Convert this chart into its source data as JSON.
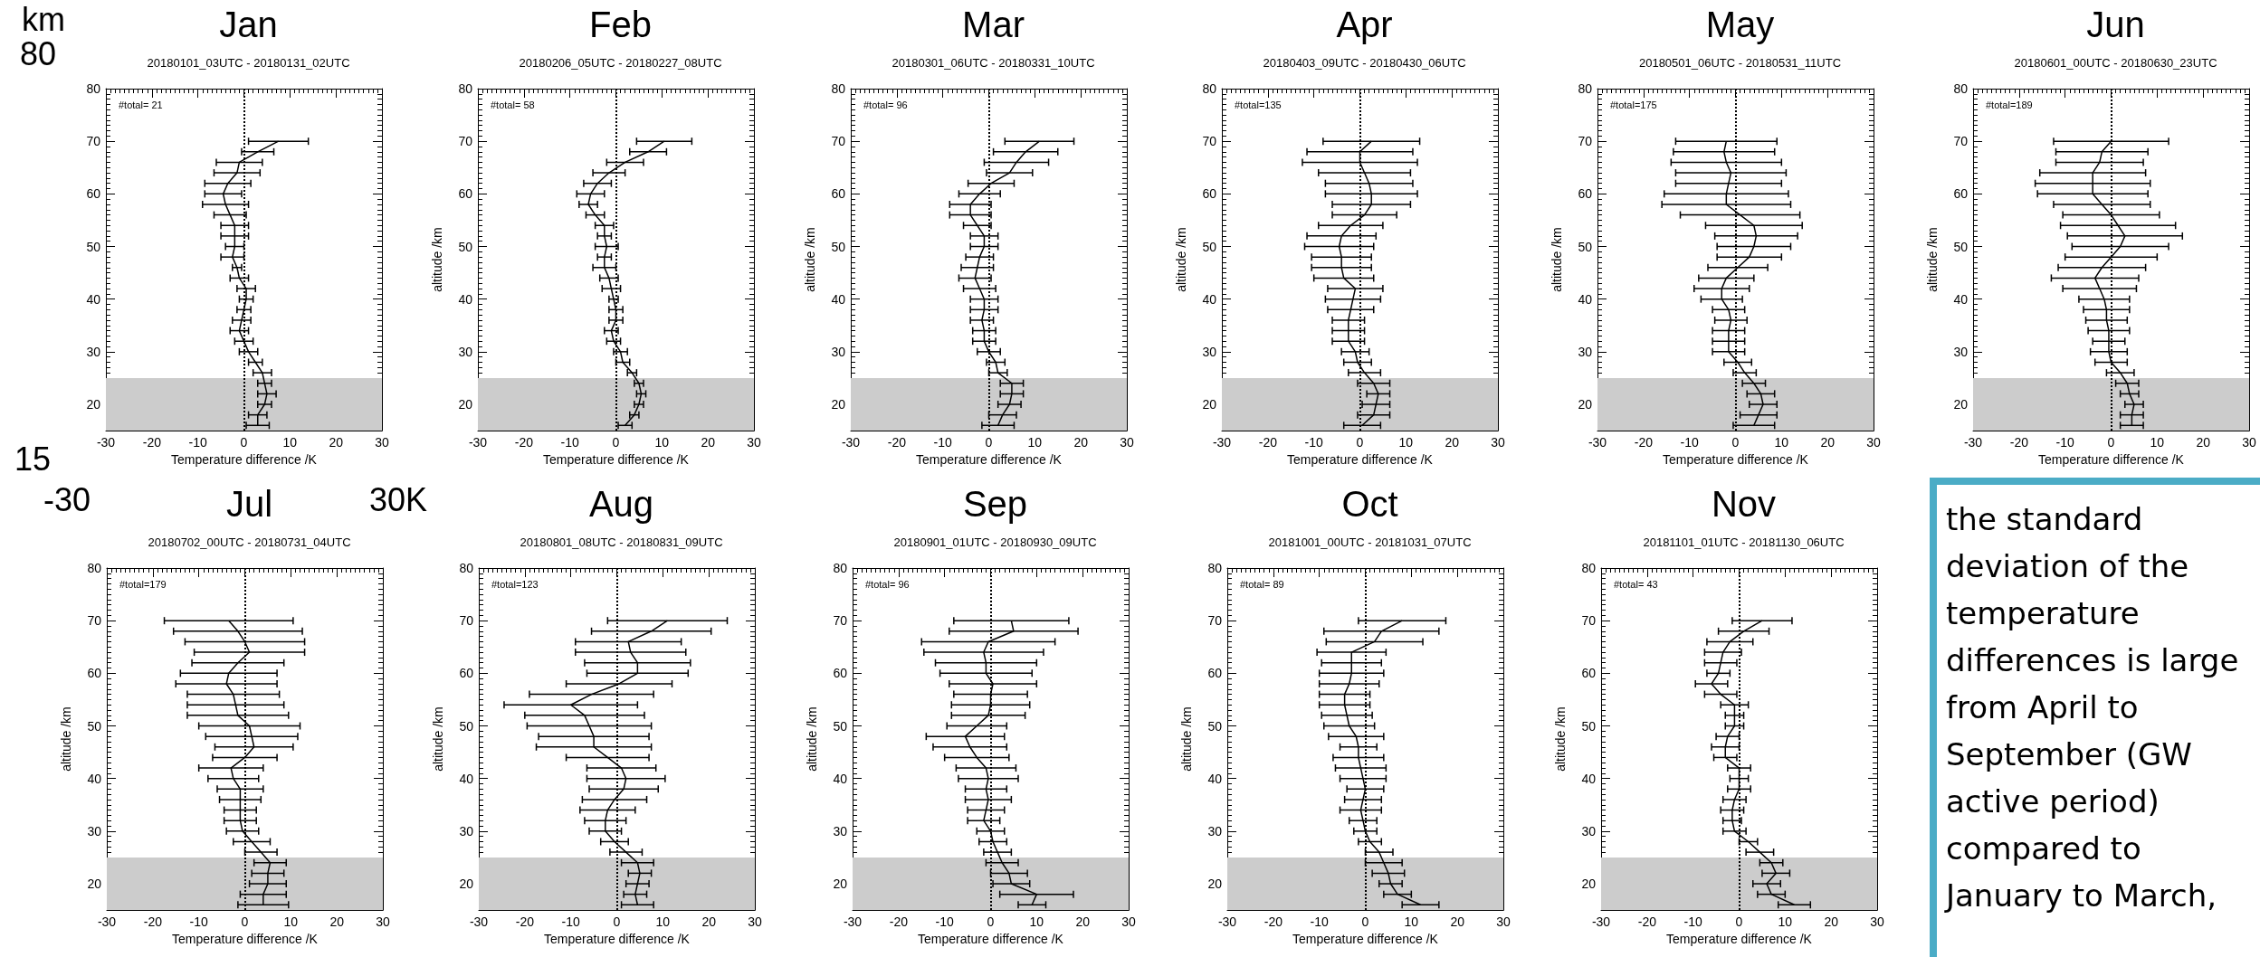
{
  "chart_data": [
    {
      "type": "line",
      "title": "Jan",
      "subtitle": "20180101_03UTC - 20180131_02UTC",
      "xlabel": "Temperature difference /K",
      "annotations": [
        "#total= 21"
      ],
      "xlim": [
        -30,
        30
      ],
      "xticks": [
        -30,
        -20,
        -10,
        0,
        10,
        20,
        30
      ],
      "ylim": [
        15,
        80
      ],
      "yticks": [
        20,
        30,
        40,
        50,
        60,
        70,
        80
      ],
      "bands": [
        {
          "axis": "y",
          "from": 15,
          "to": 25,
          "color": "#cccccc"
        }
      ],
      "ref_lines": [
        {
          "axis": "x",
          "value": 0,
          "line_style": "dotted"
        }
      ],
      "marker": "none",
      "line_style": "solid",
      "series": [
        {
          "color": "#000000",
          "values": [
            16,
            18,
            20,
            22,
            24,
            26,
            28,
            30,
            32,
            34,
            36,
            38,
            40,
            42,
            44,
            46,
            48,
            50,
            52,
            54,
            56,
            58,
            60,
            62,
            64,
            66,
            68,
            70
          ],
          "x": [
            3,
            3,
            4.5,
            5,
            4.5,
            4,
            2.5,
            1,
            0,
            -1,
            -0.5,
            0,
            0.5,
            0.5,
            -1,
            -1.5,
            -2.5,
            -2,
            -2,
            -2,
            -3,
            -4,
            -4.5,
            -3.5,
            -1.5,
            -1,
            3,
            7.5
          ],
          "xerrors": [
            2.5,
            2,
            1.5,
            2,
            1.5,
            2,
            1.5,
            2,
            2,
            2,
            2,
            1.5,
            1.5,
            2,
            2,
            1,
            2.5,
            2,
            3,
            3,
            3.5,
            5,
            4,
            5,
            5,
            5,
            3.5,
            6.5
          ]
        }
      ]
    },
    {
      "type": "line",
      "title": "Feb",
      "subtitle": "20180206_05UTC - 20180227_08UTC",
      "xlabel": "Temperature difference /K",
      "ylabel": "altitude /km",
      "annotations": [
        "#total= 58"
      ],
      "xlim": [
        -30,
        30
      ],
      "xticks": [
        -30,
        -20,
        -10,
        0,
        10,
        20,
        30
      ],
      "ylim": [
        15,
        80
      ],
      "yticks": [
        20,
        30,
        40,
        50,
        60,
        70,
        80
      ],
      "bands": [
        {
          "axis": "y",
          "from": 15,
          "to": 25,
          "color": "#cccccc"
        }
      ],
      "ref_lines": [
        {
          "axis": "x",
          "value": 0,
          "line_style": "dotted"
        }
      ],
      "marker": "none",
      "line_style": "solid",
      "series": [
        {
          "color": "#000000",
          "values": [
            16,
            18,
            20,
            22,
            24,
            26,
            28,
            30,
            32,
            34,
            36,
            38,
            40,
            42,
            44,
            46,
            48,
            50,
            52,
            54,
            56,
            58,
            60,
            62,
            64,
            66,
            68,
            70
          ],
          "x": [
            2,
            4,
            5,
            5.5,
            5,
            3.5,
            1.5,
            1,
            -0.5,
            -1,
            0,
            0,
            -0.5,
            -1,
            -1.5,
            -2.5,
            -2.5,
            -2,
            -2.5,
            -2.5,
            -4.5,
            -6,
            -5.5,
            -4,
            -1.5,
            2,
            7,
            10.5
          ],
          "xerrors": [
            1.5,
            1,
            1,
            1,
            1,
            1,
            1.5,
            1.5,
            1.5,
            1.5,
            1.5,
            1.5,
            1,
            2,
            2,
            2.5,
            1.5,
            2.5,
            1.5,
            2,
            2,
            2,
            3,
            3,
            3.5,
            4,
            4,
            6
          ]
        }
      ]
    },
    {
      "type": "line",
      "title": "Mar",
      "subtitle": "20180301_06UTC - 20180331_10UTC",
      "xlabel": "Temperature difference /K",
      "ylabel": "altitude /km",
      "annotations": [
        "#total= 96"
      ],
      "xlim": [
        -30,
        30
      ],
      "xticks": [
        -30,
        -20,
        -10,
        0,
        10,
        20,
        30
      ],
      "ylim": [
        15,
        80
      ],
      "yticks": [
        20,
        30,
        40,
        50,
        60,
        70,
        80
      ],
      "bands": [
        {
          "axis": "y",
          "from": 15,
          "to": 25,
          "color": "#cccccc"
        }
      ],
      "ref_lines": [
        {
          "axis": "x",
          "value": 0,
          "line_style": "dotted"
        }
      ],
      "marker": "none",
      "line_style": "solid",
      "series": [
        {
          "color": "#000000",
          "values": [
            16,
            18,
            20,
            22,
            24,
            26,
            28,
            30,
            32,
            34,
            36,
            38,
            40,
            42,
            44,
            46,
            48,
            50,
            52,
            54,
            56,
            58,
            60,
            62,
            64,
            66,
            68,
            70
          ],
          "x": [
            2,
            3,
            4.5,
            5,
            5,
            2,
            1.5,
            0,
            -1,
            -1,
            -1.5,
            -1,
            -1,
            -2,
            -3,
            -2.5,
            -2,
            -1,
            -1,
            -2.5,
            -4,
            -4,
            -2,
            0.5,
            4.5,
            6,
            8,
            11
          ],
          "xerrors": [
            3.5,
            3,
            2.5,
            2.5,
            2.5,
            2,
            2,
            2.5,
            2.5,
            2.5,
            2.5,
            3,
            3,
            3.5,
            3.5,
            3.5,
            3,
            3,
            3,
            3,
            4.5,
            4.5,
            4.5,
            5,
            5,
            7,
            7,
            7.5
          ]
        }
      ]
    },
    {
      "type": "line",
      "title": "Apr",
      "subtitle": "20180403_09UTC - 20180430_06UTC",
      "xlabel": "Temperature difference /K",
      "ylabel": "altitude /km",
      "annotations": [
        "#total=135"
      ],
      "xlim": [
        -30,
        30
      ],
      "xticks": [
        -30,
        -20,
        -10,
        0,
        10,
        20,
        30
      ],
      "ylim": [
        15,
        80
      ],
      "yticks": [
        20,
        30,
        40,
        50,
        60,
        70,
        80
      ],
      "bands": [
        {
          "axis": "y",
          "from": 15,
          "to": 25,
          "color": "#cccccc"
        }
      ],
      "ref_lines": [
        {
          "axis": "x",
          "value": 0,
          "line_style": "dotted"
        }
      ],
      "marker": "none",
      "line_style": "solid",
      "series": [
        {
          "color": "#000000",
          "values": [
            16,
            18,
            20,
            22,
            24,
            26,
            28,
            30,
            32,
            34,
            36,
            38,
            40,
            42,
            44,
            46,
            48,
            50,
            52,
            54,
            56,
            58,
            60,
            62,
            64,
            66,
            68,
            70
          ],
          "x": [
            0.5,
            3,
            3.5,
            4,
            3,
            1,
            -0.5,
            -1,
            -2.5,
            -2.5,
            -2.5,
            -2,
            -1.5,
            -1,
            -3.5,
            -4,
            -4,
            -4.5,
            -4,
            -2,
            1,
            2.5,
            2.5,
            2,
            1,
            0,
            0,
            2.5
          ],
          "xerrors": [
            4,
            3.5,
            3,
            2.5,
            3.5,
            3.5,
            3,
            3,
            3.5,
            3.5,
            3.5,
            5,
            6,
            6,
            6.5,
            6.5,
            6.5,
            7.5,
            7.5,
            7,
            7,
            8.5,
            10,
            9.5,
            10,
            12.5,
            11.5,
            10.5
          ]
        }
      ]
    },
    {
      "type": "line",
      "title": "May",
      "subtitle": "20180501_06UTC - 20180531_11UTC",
      "xlabel": "Temperature difference /K",
      "ylabel": "altitude /km",
      "annotations": [
        "#total=175"
      ],
      "xlim": [
        -30,
        30
      ],
      "xticks": [
        -30,
        -20,
        -10,
        0,
        10,
        20,
        30
      ],
      "ylim": [
        15,
        80
      ],
      "yticks": [
        20,
        30,
        40,
        50,
        60,
        70,
        80
      ],
      "bands": [
        {
          "axis": "y",
          "from": 15,
          "to": 25,
          "color": "#cccccc"
        }
      ],
      "ref_lines": [
        {
          "axis": "x",
          "value": 0,
          "line_style": "dotted"
        }
      ],
      "marker": "none",
      "line_style": "solid",
      "series": [
        {
          "color": "#000000",
          "values": [
            16,
            18,
            20,
            22,
            24,
            26,
            28,
            30,
            32,
            34,
            36,
            38,
            40,
            42,
            44,
            46,
            48,
            50,
            52,
            54,
            56,
            58,
            60,
            62,
            64,
            66,
            68,
            70
          ],
          "x": [
            4,
            5,
            6,
            5.5,
            4,
            2,
            0.5,
            -1.5,
            -1.5,
            -1.5,
            -1,
            -1.5,
            -3,
            -3,
            -2,
            0.5,
            3,
            4,
            4.5,
            4,
            1,
            -2,
            -2,
            -1.5,
            -1,
            -2,
            -2.5,
            -2
          ],
          "xerrors": [
            4.5,
            4,
            3,
            3,
            2.5,
            2.5,
            3,
            3.5,
            3.5,
            3.5,
            3.5,
            3.5,
            4.5,
            6,
            6,
            6.5,
            7,
            8,
            9,
            10.5,
            13,
            14,
            13.5,
            11.5,
            12,
            12,
            11,
            11
          ]
        }
      ]
    },
    {
      "type": "line",
      "title": "Jun",
      "subtitle": "20180601_00UTC - 20180630_23UTC",
      "xlabel": "Temperature difference /K",
      "ylabel": "altitude /km",
      "annotations": [
        "#total=189"
      ],
      "xlim": [
        -30,
        30
      ],
      "xticks": [
        -30,
        -20,
        -10,
        0,
        10,
        20,
        30
      ],
      "ylim": [
        15,
        80
      ],
      "yticks": [
        20,
        30,
        40,
        50,
        60,
        70,
        80
      ],
      "bands": [
        {
          "axis": "y",
          "from": 15,
          "to": 25,
          "color": "#cccccc"
        }
      ],
      "ref_lines": [
        {
          "axis": "x",
          "value": 0,
          "line_style": "dotted"
        }
      ],
      "marker": "none",
      "line_style": "solid",
      "series": [
        {
          "color": "#000000",
          "values": [
            16,
            18,
            20,
            22,
            24,
            26,
            28,
            30,
            32,
            34,
            36,
            38,
            40,
            42,
            44,
            46,
            48,
            50,
            52,
            54,
            56,
            58,
            60,
            62,
            64,
            66,
            68,
            70
          ],
          "x": [
            4.5,
            4.5,
            5,
            4,
            3.5,
            2,
            0,
            -0.5,
            -0.5,
            -0.5,
            -1,
            -1,
            -1.5,
            -2.5,
            -3.5,
            -2,
            0,
            2,
            3,
            1.5,
            0,
            -2,
            -4,
            -4,
            -4,
            -2.5,
            -2,
            0
          ],
          "xerrors": [
            2.5,
            2.5,
            2,
            2,
            2.5,
            3,
            3.5,
            4,
            3.5,
            4.5,
            4.5,
            5,
            5.5,
            8,
            9.5,
            9.5,
            10,
            10.5,
            12.5,
            12.5,
            10.5,
            10.5,
            12,
            12.5,
            11.5,
            9.5,
            10,
            12.5
          ]
        }
      ]
    },
    {
      "type": "line",
      "title": "Jul",
      "subtitle": "20180702_00UTC - 20180731_04UTC",
      "xlabel": "Temperature difference /K",
      "ylabel": "altitude /km",
      "annotations": [
        "#total=179"
      ],
      "xlim": [
        -30,
        30
      ],
      "xticks": [
        -30,
        -20,
        -10,
        0,
        10,
        20,
        30
      ],
      "ylim": [
        15,
        80
      ],
      "yticks": [
        20,
        30,
        40,
        50,
        60,
        70,
        80
      ],
      "bands": [
        {
          "axis": "y",
          "from": 15,
          "to": 25,
          "color": "#cccccc"
        }
      ],
      "ref_lines": [
        {
          "axis": "x",
          "value": 0,
          "line_style": "dotted"
        }
      ],
      "marker": "none",
      "line_style": "solid",
      "series": [
        {
          "color": "#000000",
          "values": [
            16,
            18,
            20,
            22,
            24,
            26,
            28,
            30,
            32,
            34,
            36,
            38,
            40,
            42,
            44,
            46,
            48,
            50,
            52,
            54,
            56,
            58,
            60,
            62,
            64,
            66,
            68,
            70
          ],
          "x": [
            4,
            4,
            5,
            5,
            5.5,
            3.5,
            1.5,
            -0.5,
            -1,
            -1,
            -1,
            -1,
            -2.5,
            -3,
            0,
            2,
            1.5,
            1,
            -1.5,
            -2,
            -2.5,
            -4,
            -3.5,
            -1.5,
            1,
            0,
            -1.5,
            -3.5
          ],
          "xerrors": [
            5.5,
            5,
            4,
            3.5,
            3.5,
            3.5,
            4,
            3.5,
            3.5,
            3.5,
            4.5,
            5,
            5.5,
            7,
            7,
            8.5,
            10,
            11,
            11,
            10.5,
            10,
            11,
            10.5,
            10,
            12,
            13,
            14,
            14
          ]
        }
      ]
    },
    {
      "type": "line",
      "title": "Aug",
      "subtitle": "20180801_08UTC - 20180831_09UTC",
      "xlabel": "Temperature difference /K",
      "ylabel": "altitude /km",
      "annotations": [
        "#total=123"
      ],
      "xlim": [
        -30,
        30
      ],
      "xticks": [
        -30,
        -20,
        -10,
        0,
        10,
        20,
        30
      ],
      "ylim": [
        15,
        80
      ],
      "yticks": [
        20,
        30,
        40,
        50,
        60,
        70,
        80
      ],
      "bands": [
        {
          "axis": "y",
          "from": 15,
          "to": 25,
          "color": "#cccccc"
        }
      ],
      "ref_lines": [
        {
          "axis": "x",
          "value": 0,
          "line_style": "dotted"
        }
      ],
      "marker": "none",
      "line_style": "solid",
      "series": [
        {
          "color": "#000000",
          "values": [
            16,
            18,
            20,
            22,
            24,
            26,
            28,
            30,
            32,
            34,
            36,
            38,
            40,
            42,
            44,
            46,
            48,
            50,
            52,
            54,
            56,
            58,
            60,
            62,
            64,
            66,
            68,
            70
          ],
          "x": [
            4.5,
            4,
            4.5,
            5,
            4.5,
            2,
            -0.5,
            -2.5,
            -2.5,
            -2,
            -0.5,
            1.5,
            2,
            1,
            -2,
            -5,
            -5,
            -6,
            -7,
            -10,
            -5.5,
            0.5,
            4.5,
            4.5,
            3,
            2.5,
            7.5,
            11
          ],
          "xerrors": [
            3.5,
            2.5,
            2.5,
            2.5,
            3.5,
            3.5,
            3,
            3.5,
            4.5,
            6,
            7,
            7.5,
            8.5,
            7.5,
            9,
            12.5,
            12,
            13.5,
            13,
            14.5,
            13.5,
            11.5,
            11,
            11.5,
            12,
            11.5,
            13,
            13
          ]
        }
      ]
    },
    {
      "type": "line",
      "title": "Sep",
      "subtitle": "20180901_01UTC - 20180930_09UTC",
      "xlabel": "Temperature difference /K",
      "ylabel": "altitude /km",
      "annotations": [
        "#total= 96"
      ],
      "xlim": [
        -30,
        30
      ],
      "xticks": [
        -30,
        -20,
        -10,
        0,
        10,
        20,
        30
      ],
      "ylim": [
        15,
        80
      ],
      "yticks": [
        20,
        30,
        40,
        50,
        60,
        70,
        80
      ],
      "bands": [
        {
          "axis": "y",
          "from": 15,
          "to": 25,
          "color": "#cccccc"
        }
      ],
      "ref_lines": [
        {
          "axis": "x",
          "value": 0,
          "line_style": "dotted"
        }
      ],
      "marker": "none",
      "line_style": "solid",
      "series": [
        {
          "color": "#000000",
          "values": [
            16,
            18,
            20,
            22,
            24,
            26,
            28,
            30,
            32,
            34,
            36,
            38,
            40,
            42,
            44,
            46,
            48,
            50,
            52,
            54,
            56,
            58,
            60,
            62,
            64,
            66,
            68,
            70
          ],
          "x": [
            9,
            10,
            4.5,
            4,
            2.5,
            1.5,
            0.5,
            0,
            -1.5,
            -1,
            -0.5,
            -1,
            -0.5,
            -1,
            -3,
            -4.5,
            -5.5,
            -3,
            -0.5,
            0,
            0,
            0.5,
            -1,
            -1,
            -1.5,
            -0.5,
            5,
            4.5
          ],
          "xerrors": [
            3,
            8,
            4,
            4,
            3.5,
            3,
            3,
            3,
            3.5,
            4,
            5,
            4.5,
            6.5,
            6.5,
            7,
            8,
            8.5,
            6.5,
            8,
            8.5,
            8,
            9.5,
            10,
            11,
            13,
            14.5,
            14,
            12.5
          ]
        }
      ]
    },
    {
      "type": "line",
      "title": "Oct",
      "subtitle": "20181001_00UTC - 20181031_07UTC",
      "xlabel": "Temperature difference /K",
      "ylabel": "altitude /km",
      "annotations": [
        "#total= 89"
      ],
      "xlim": [
        -30,
        30
      ],
      "xticks": [
        -30,
        -20,
        -10,
        0,
        10,
        20,
        30
      ],
      "ylim": [
        15,
        80
      ],
      "yticks": [
        20,
        30,
        40,
        50,
        60,
        70,
        80
      ],
      "bands": [
        {
          "axis": "y",
          "from": 15,
          "to": 25,
          "color": "#cccccc"
        }
      ],
      "ref_lines": [
        {
          "axis": "x",
          "value": 0,
          "line_style": "dotted"
        }
      ],
      "marker": "none",
      "line_style": "solid",
      "series": [
        {
          "color": "#000000",
          "values": [
            16,
            18,
            20,
            22,
            24,
            26,
            28,
            30,
            32,
            34,
            36,
            38,
            40,
            42,
            44,
            46,
            48,
            50,
            52,
            54,
            56,
            58,
            60,
            62,
            64,
            66,
            68,
            70
          ],
          "x": [
            12,
            7,
            5.5,
            5,
            4,
            3,
            1,
            0,
            -0.5,
            -1,
            -0.5,
            0,
            -0.5,
            -1,
            -1.5,
            -1.5,
            -2,
            -3.5,
            -4,
            -4.5,
            -4.5,
            -3.5,
            -3,
            -3,
            -3,
            2,
            3.5,
            8
          ],
          "xerrors": [
            4,
            3,
            2.5,
            3.5,
            4,
            3,
            2.5,
            2.5,
            3,
            4.5,
            4,
            4,
            5,
            5.5,
            5.5,
            4,
            6,
            5.5,
            5.5,
            5.5,
            5.5,
            6.5,
            7,
            6.5,
            7.5,
            10.5,
            12.5,
            9.5
          ]
        }
      ]
    },
    {
      "type": "line",
      "title": "Nov",
      "subtitle": "20181101_01UTC - 20181130_06UTC",
      "xlabel": "Temperature difference /K",
      "ylabel": "altitude /km",
      "annotations": [
        "#total= 43"
      ],
      "xlim": [
        -30,
        30
      ],
      "xticks": [
        -30,
        -20,
        -10,
        0,
        10,
        20,
        30
      ],
      "ylim": [
        15,
        80
      ],
      "yticks": [
        20,
        30,
        40,
        50,
        60,
        70,
        80
      ],
      "bands": [
        {
          "axis": "y",
          "from": 15,
          "to": 25,
          "color": "#cccccc"
        }
      ],
      "ref_lines": [
        {
          "axis": "x",
          "value": 0,
          "line_style": "dotted"
        }
      ],
      "marker": "none",
      "line_style": "solid",
      "series": [
        {
          "color": "#000000",
          "values": [
            16,
            18,
            20,
            22,
            24,
            26,
            28,
            30,
            32,
            34,
            36,
            38,
            40,
            42,
            44,
            46,
            48,
            50,
            52,
            54,
            56,
            58,
            60,
            62,
            64,
            66,
            68,
            70
          ],
          "x": [
            12,
            7,
            6,
            8,
            7,
            4.5,
            2,
            -1,
            -1.5,
            -1.5,
            -1,
            0,
            0,
            0,
            -3,
            -3,
            -2.5,
            -1,
            -1,
            -1,
            -4,
            -6,
            -4.5,
            -4,
            -3.5,
            -2,
            1,
            5
          ],
          "xerrors": [
            3.5,
            3,
            3,
            3,
            2.5,
            3,
            2,
            2.5,
            2,
            2.5,
            2.5,
            2.5,
            2,
            2.5,
            2.5,
            3,
            2.5,
            2,
            2,
            3,
            3.5,
            3.5,
            2.5,
            3.5,
            4,
            5,
            5.5,
            6.5
          ]
        }
      ]
    },
    {
      "type": "other",
      "annotations": [
        "km",
        "80",
        "15",
        "-30",
        "30K",
        "the standard deviation of the temperature differences is large from April to September (GW active period) compared to January to March,"
      ]
    }
  ]
}
